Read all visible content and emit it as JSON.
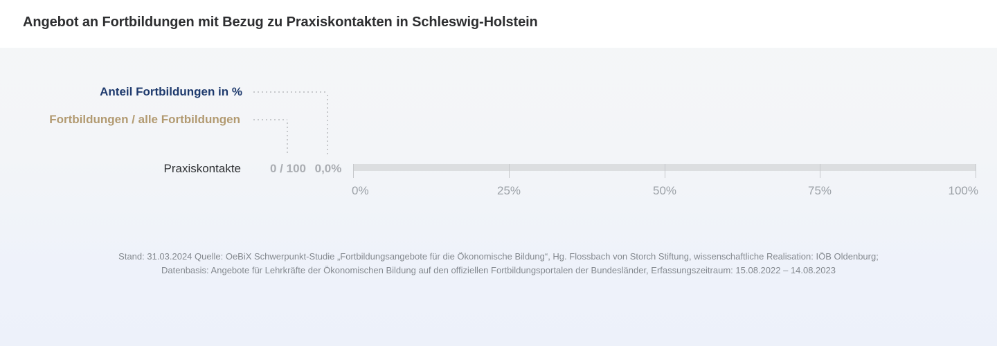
{
  "header": {
    "title": "Angebot an Fortbildungen mit Bezug zu Praxiskontakten in Schleswig-Holstein"
  },
  "chart": {
    "legend": {
      "percent_label": "Anteil Fortbildungen  in %",
      "ratio_label": "Fortbildungen / alle Fortbildungen"
    },
    "row": {
      "category": "Praxiskontakte",
      "ratio_value": "0 / 100",
      "percent_value": "0,0%"
    },
    "axis": {
      "ticks": [
        {
          "label": "0%",
          "value": 0
        },
        {
          "label": "25%",
          "value": 25
        },
        {
          "label": "50%",
          "value": 50
        },
        {
          "label": "75%",
          "value": 75
        },
        {
          "label": "100%",
          "value": 100
        }
      ]
    }
  },
  "footer": {
    "line1": "Stand: 31.03.2024 Quelle: OeBiX Schwerpunkt-Studie „Fortbildungsangebote für die Ökonomische Bildung“, Hg. Flossbach von Storch Stiftung, wissenschaftliche Realisation: IÖB Oldenburg;",
    "line2": "Datenbasis: Angebote für Lehrkräfte der Ökonomischen Bildung auf den offiziellen Fortbildungsportalen der Bundesländer, Erfassungszeitraum: 15.08.2022 – 14.08.2023"
  },
  "colors": {
    "accent_navy": "#1e3a6d",
    "accent_tan": "#b29a71",
    "track_gray": "#dcdee0",
    "value_gray": "#aaadb2",
    "header_bg": "#ffffff"
  },
  "chart_data": {
    "type": "bar",
    "orientation": "horizontal",
    "title": "Angebot an Fortbildungen mit Bezug zu Praxiskontakten in Schleswig-Holstein",
    "categories": [
      "Praxiskontakte"
    ],
    "series": [
      {
        "name": "Anteil Fortbildungen in %",
        "values": [
          0.0
        ],
        "display": [
          "0,0%"
        ]
      },
      {
        "name": "Fortbildungen / alle Fortbildungen",
        "values_numerator": [
          0
        ],
        "values_denominator": [
          100
        ],
        "display": [
          "0 / 100"
        ]
      }
    ],
    "xlabel": "",
    "ylabel": "",
    "xlim": [
      0,
      100
    ],
    "x_tick_labels": [
      "0%",
      "25%",
      "50%",
      "75%",
      "100%"
    ],
    "grid": false,
    "legend_position": "top-left"
  }
}
